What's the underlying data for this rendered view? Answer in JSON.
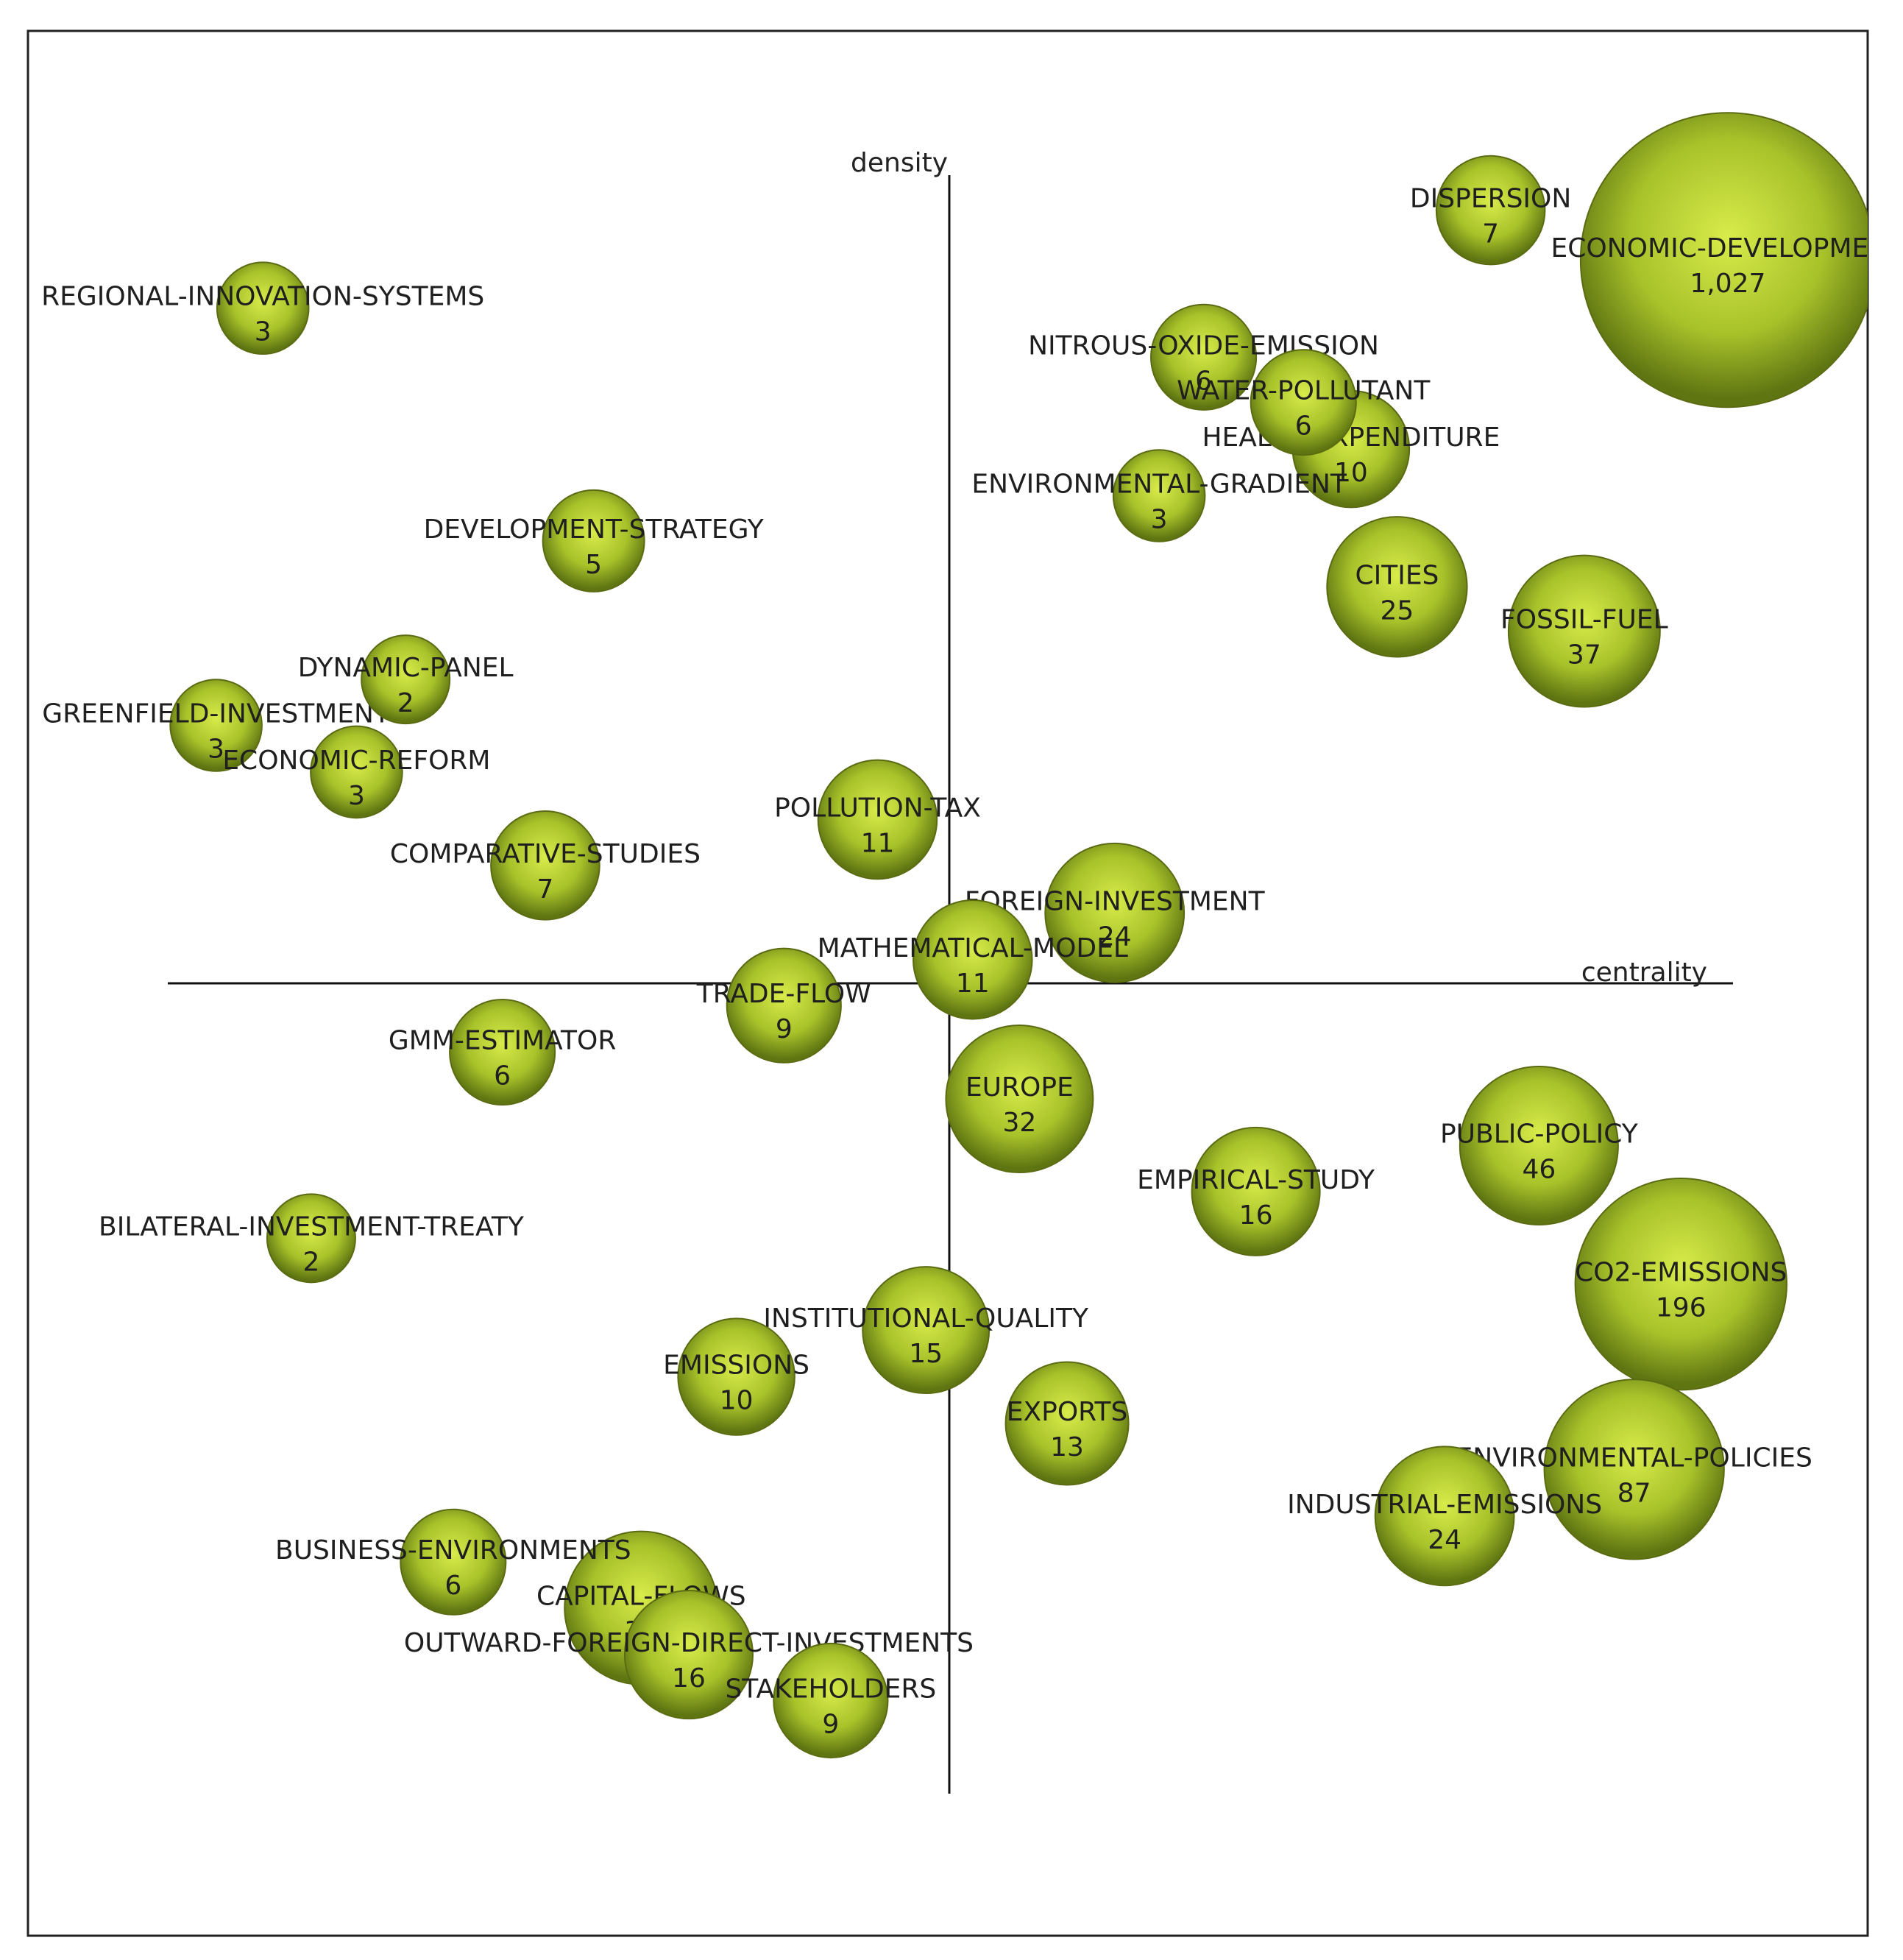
{
  "colors": {
    "bubble_light": "#d8ec4a",
    "bubble_mid": "#a8c22a",
    "bubble_dark": "#5f7512",
    "axis": "#111111",
    "text": "#1f1f1f"
  },
  "chart_data": {
    "type": "scatter",
    "title": "",
    "xlabel": "centrality",
    "ylabel": "density",
    "xlim": [
      -1,
      1
    ],
    "ylim": [
      -1,
      1
    ],
    "grid": false,
    "legend": "none",
    "encoding": "bubble size ~ count",
    "points": [
      {
        "label": "ECONOMIC-DEVELOPMENT",
        "count": "1,027",
        "value": 1027,
        "x": 0.998,
        "y": 0.945
      },
      {
        "label": "DISPERSION",
        "count": "7",
        "value": 7,
        "x": 0.694,
        "y": 1.01
      },
      {
        "label": "REGIONAL-INNOVATION-SYSTEMS",
        "count": "3",
        "value": 3,
        "x": -0.88,
        "y": 0.882
      },
      {
        "label": "NITROUS-OXIDE-EMISSION",
        "count": "6",
        "value": 6,
        "x": 0.326,
        "y": 0.818
      },
      {
        "label": "WATER-POLLUTANT",
        "count": "6",
        "value": 6,
        "x": 0.454,
        "y": 0.759
      },
      {
        "label": "HEALTH-EXPENDITURE",
        "count": "10",
        "value": 10,
        "x": 0.515,
        "y": 0.698
      },
      {
        "label": "ENVIRONMENTAL-GRADIENT",
        "count": "3",
        "value": 3,
        "x": 0.269,
        "y": 0.637
      },
      {
        "label": "DEVELOPMENT-STRATEGY",
        "count": "5",
        "value": 5,
        "x": -0.456,
        "y": 0.578
      },
      {
        "label": "CITIES",
        "count": "25",
        "value": 25,
        "x": 0.574,
        "y": 0.518
      },
      {
        "label": "FOSSIL-FUEL",
        "count": "37",
        "value": 37,
        "x": 0.814,
        "y": 0.46
      },
      {
        "label": "DYNAMIC-PANEL",
        "count": "2",
        "value": 2,
        "x": -0.697,
        "y": 0.397
      },
      {
        "label": "GREENFIELD-INVESTMENT",
        "count": "3",
        "value": 3,
        "x": -0.94,
        "y": 0.337
      },
      {
        "label": "ECONOMIC-REFORM",
        "count": "3",
        "value": 3,
        "x": -0.76,
        "y": 0.276
      },
      {
        "label": "POLLUTION-TAX",
        "count": "11",
        "value": 11,
        "x": -0.092,
        "y": 0.214
      },
      {
        "label": "COMPARATIVE-STUDIES",
        "count": "7",
        "value": 7,
        "x": -0.518,
        "y": 0.154
      },
      {
        "label": "FOREIGN-INVESTMENT",
        "count": "24",
        "value": 24,
        "x": 0.212,
        "y": 0.092
      },
      {
        "label": "MATHEMATICAL-MODEL",
        "count": "11",
        "value": 11,
        "x": 0.03,
        "y": 0.031
      },
      {
        "label": "TRADE-FLOW",
        "count": "9",
        "value": 9,
        "x": -0.212,
        "y": -0.029
      },
      {
        "label": "GMM-ESTIMATOR",
        "count": "6",
        "value": 6,
        "x": -0.573,
        "y": -0.09
      },
      {
        "label": "EUROPE",
        "count": "32",
        "value": 32,
        "x": 0.09,
        "y": -0.151
      },
      {
        "label": "PUBLIC-POLICY",
        "count": "46",
        "value": 46,
        "x": 0.756,
        "y": -0.212
      },
      {
        "label": "EMPIRICAL-STUDY",
        "count": "16",
        "value": 16,
        "x": 0.393,
        "y": -0.272
      },
      {
        "label": "BILATERAL-INVESTMENT-TREATY",
        "count": "2",
        "value": 2,
        "x": -0.818,
        "y": -0.333
      },
      {
        "label": "CO2-EMISSIONS",
        "count": "196",
        "value": 196,
        "x": 0.938,
        "y": -0.393
      },
      {
        "label": "INSTITUTIONAL-QUALITY",
        "count": "15",
        "value": 15,
        "x": -0.03,
        "y": -0.453
      },
      {
        "label": "EMISSIONS",
        "count": "10",
        "value": 10,
        "x": -0.273,
        "y": -0.514
      },
      {
        "label": "EXPORTS",
        "count": "13",
        "value": 13,
        "x": 0.151,
        "y": -0.575
      },
      {
        "label": "ENVIRONMENTAL-POLICIES",
        "count": "87",
        "value": 87,
        "x": 0.878,
        "y": -0.635
      },
      {
        "label": "INDUSTRIAL-EMISSIONS",
        "count": "24",
        "value": 24,
        "x": 0.635,
        "y": -0.696
      },
      {
        "label": "BUSINESS-ENVIRONMENTS",
        "count": "6",
        "value": 6,
        "x": -0.636,
        "y": -0.756
      },
      {
        "label": "CAPITAL-FLOWS",
        "count": "39",
        "value": 39,
        "x": -0.395,
        "y": -0.816
      },
      {
        "label": "OUTWARD-FOREIGN-DIRECT-INVESTMENTS",
        "count": "16",
        "value": 16,
        "x": -0.334,
        "y": -0.877
      },
      {
        "label": "STAKEHOLDERS",
        "count": "9",
        "value": 9,
        "x": -0.152,
        "y": -0.937
      }
    ]
  }
}
